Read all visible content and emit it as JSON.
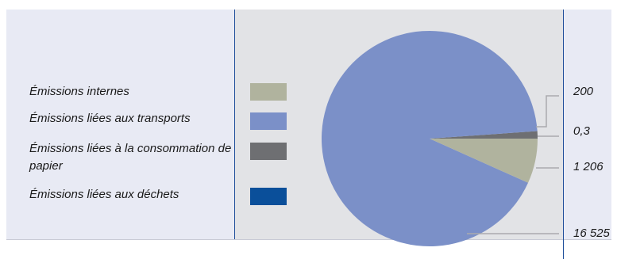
{
  "chart_data": {
    "type": "pie",
    "title": "",
    "slices": [
      {
        "label": "Émissions internes",
        "value": 1206,
        "value_label": "1 206",
        "color": "#b0b39e"
      },
      {
        "label": "Émissions liées aux transports",
        "value": 16525,
        "value_label": "16 525",
        "color": "#7b90c8"
      },
      {
        "label": "Émissions liées à la consommation de papier",
        "value": 200,
        "value_label": "200",
        "color": "#6e6f72"
      },
      {
        "label": "Émissions liées aux déchets",
        "value": 0.3,
        "value_label": "0,3",
        "color": "#0a4f9a"
      }
    ],
    "legend_position": "left"
  },
  "colors": {
    "panel_background": "#e2e3e6",
    "frame_background": "#e8eaf4",
    "divider": "#1f4e9a",
    "leader": "#a9aaad"
  }
}
